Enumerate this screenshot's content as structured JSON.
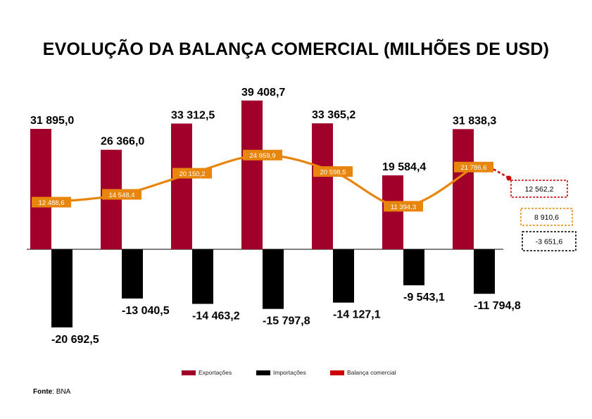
{
  "title": "EVOLUÇÃO DA BALANÇA COMERCIAL (MILHÕES DE USD)",
  "source": {
    "label": "Fonte",
    "value": ": BNA"
  },
  "legend": [
    {
      "label": "Exportações",
      "color": "#a0002a"
    },
    {
      "label": "Importações",
      "color": "#000000"
    },
    {
      "label": "Balança comercial",
      "color": "#cc0000"
    }
  ],
  "colors": {
    "exports": "#a0002a",
    "imports": "#000000",
    "balance_line": "#e8850c",
    "balance_label_bg": "#e8850c"
  },
  "chart_data": {
    "type": "bar",
    "series": [
      {
        "name": "Exportações",
        "values": [
          31895.0,
          26366.0,
          33312.5,
          39408.7,
          33365.2,
          19584.4,
          31838.3
        ],
        "labels": [
          "31 895,0",
          "26 366,0",
          "33 312,5",
          "39 408,7",
          "33 365,2",
          "19 584,4",
          "31 838,3"
        ]
      },
      {
        "name": "Importações",
        "values": [
          -20692.5,
          -13040.5,
          -14463.2,
          -15797.8,
          -14127.1,
          -9543.1,
          -11794.8
        ],
        "labels": [
          "-20 692,5",
          "-13 040,5",
          "-14 463,2",
          "-15 797,8",
          "-14 127,1",
          "-9 543,1",
          "-11 794,8"
        ]
      },
      {
        "name": "Balança comercial",
        "type": "line",
        "values": [
          12488.6,
          14548.4,
          20150.2,
          24959.9,
          20598.5,
          11394.3,
          21786.6
        ],
        "labels": [
          "12 488,6",
          "14 548,4",
          "20 150,2",
          "24 959,9",
          "20 598,5",
          "11 394,3",
          "21 786,6"
        ]
      }
    ],
    "trailing_values": [
      {
        "value": 12562.2,
        "label": "12 562,2",
        "border": "#cc0000"
      },
      {
        "value": 8910.6,
        "label": "8 910,6",
        "border": "#e8850c"
      },
      {
        "value": -3651.6,
        "label": "-3 651,6",
        "border": "#000000"
      }
    ]
  }
}
